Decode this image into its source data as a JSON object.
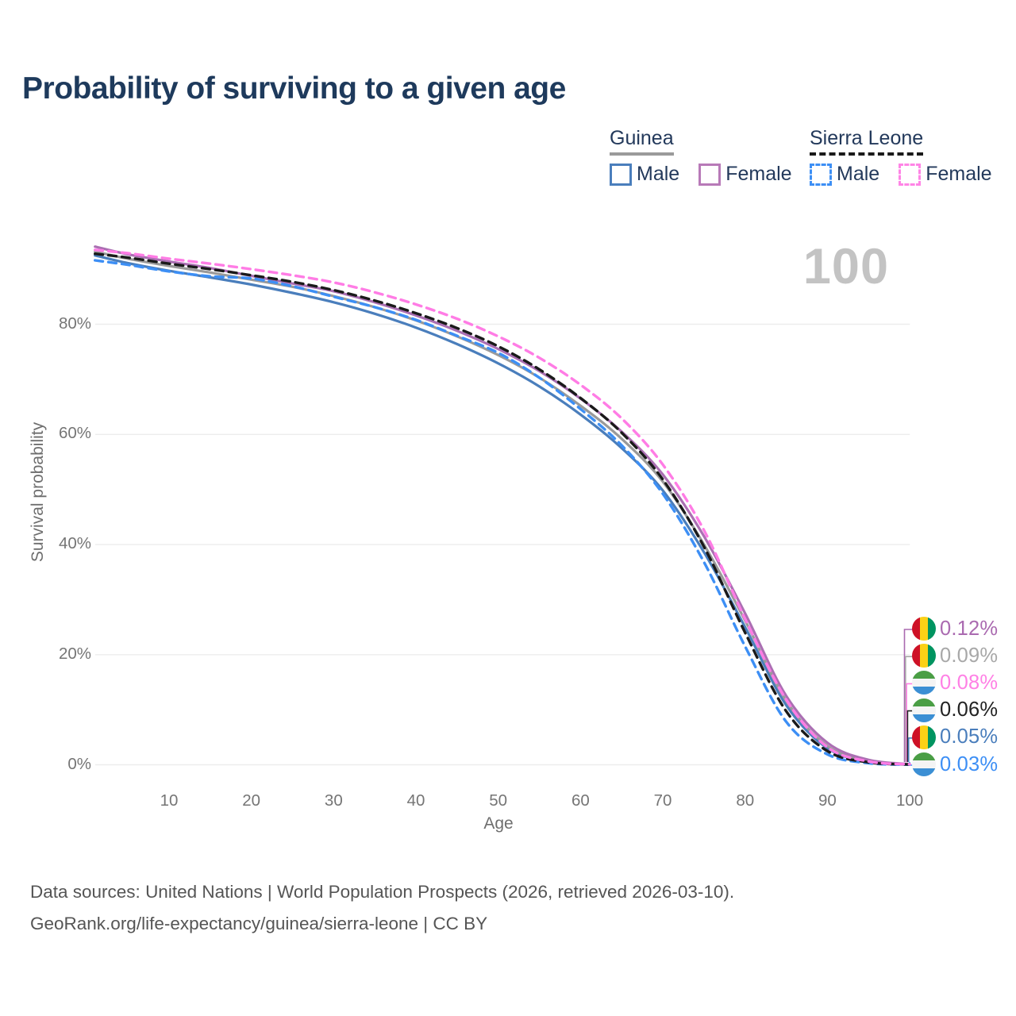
{
  "title": "Probability of surviving to a given age",
  "watermark": "100",
  "legend": {
    "groups": [
      {
        "id": "guinea",
        "title": "Guinea",
        "line_style": "solid",
        "line_color": "#9a9a9a",
        "items": [
          {
            "id": "guinea-male",
            "label": "Male",
            "color": "#4a7ebc",
            "style": "solid"
          },
          {
            "id": "guinea-female",
            "label": "Female",
            "color": "#bخت}ab8",
            "style": "solid"
          }
        ]
      }
    ]
  },
  "chart_data": {
    "type": "line",
    "title": "Probability of surviving to a given age",
    "xlabel": "Age",
    "ylabel": "Survival probability",
    "x_ticks": [
      10,
      20,
      30,
      40,
      50,
      60,
      70,
      80,
      90,
      100
    ],
    "y_ticks": [
      0,
      20,
      40,
      60,
      80
    ],
    "y_tick_suffix": "%",
    "xlim": [
      0,
      100
    ],
    "ylim": [
      0,
      100
    ],
    "grid": "horizontal",
    "x": [
      1,
      5,
      10,
      15,
      20,
      25,
      30,
      35,
      40,
      45,
      50,
      55,
      60,
      65,
      70,
      75,
      80,
      85,
      90,
      95,
      100
    ],
    "series": [
      {
        "name": "Guinea Male",
        "country": "Guinea",
        "sex": "Male",
        "color": "#4a7ebc",
        "dash": "solid",
        "values": [
          92.5,
          91.1,
          89.7,
          88.5,
          87.2,
          85.7,
          84.0,
          81.9,
          79.4,
          76.4,
          72.9,
          68.7,
          63.6,
          57.5,
          49.8,
          38.6,
          25.0,
          10.8,
          3.0,
          0.55,
          0.05
        ]
      },
      {
        "name": "Guinea Both sexes",
        "country": "Guinea",
        "sex": "Both",
        "color": "#9a9a9a",
        "dash": "solid",
        "values": [
          93.2,
          91.9,
          90.6,
          89.4,
          88.1,
          86.8,
          85.1,
          83.1,
          80.7,
          77.8,
          74.4,
          70.3,
          65.2,
          59.2,
          51.4,
          40.0,
          26.2,
          11.6,
          3.4,
          0.7,
          0.09
        ]
      },
      {
        "name": "Guinea Female",
        "country": "Guinea",
        "sex": "Female",
        "color": "#ab6fb3",
        "dash": "solid",
        "values": [
          94.1,
          92.7,
          91.4,
          90.2,
          88.8,
          87.4,
          86.0,
          84.0,
          81.6,
          78.8,
          75.5,
          71.5,
          66.5,
          60.5,
          52.7,
          41.5,
          27.5,
          12.5,
          4.0,
          0.9,
          0.12
        ]
      },
      {
        "name": "Sierra Leone Male",
        "country": "Sierra Leone",
        "sex": "Male",
        "color": "#3d8ff5",
        "dash": "dashed",
        "values": [
          91.6,
          90.8,
          89.6,
          88.7,
          88.3,
          86.9,
          85.0,
          83.1,
          80.8,
          77.9,
          74.8,
          70.3,
          64.6,
          58.0,
          49.2,
          36.8,
          21.5,
          7.8,
          1.9,
          0.3,
          0.03
        ]
      },
      {
        "name": "Sierra Leone Both sexes",
        "country": "Sierra Leone",
        "sex": "Both",
        "color": "#1a1a1a",
        "dash": "dashed",
        "values": [
          92.8,
          92.1,
          91.0,
          90.0,
          88.9,
          87.7,
          86.2,
          84.3,
          82.0,
          79.3,
          76.0,
          71.8,
          66.6,
          60.3,
          51.8,
          39.6,
          24.0,
          9.7,
          2.5,
          0.45,
          0.06
        ]
      },
      {
        "name": "Sierra Leone Female",
        "country": "Sierra Leone",
        "sex": "Female",
        "color": "#ff7ce5",
        "dash": "dashed",
        "values": [
          93.5,
          92.9,
          91.9,
          91.0,
          90.0,
          88.9,
          87.6,
          85.8,
          83.6,
          81.0,
          77.8,
          73.9,
          69.0,
          62.9,
          54.5,
          42.6,
          26.5,
          11.8,
          3.2,
          0.6,
          0.08
        ]
      }
    ]
  },
  "annotations": [
    {
      "value": "0.12%",
      "color": "#aa6ab0",
      "flag": "guinea",
      "series": "Guinea Female"
    },
    {
      "value": "0.09%",
      "color": "#a8a8a8",
      "flag": "guinea",
      "series": "Guinea Both sexes"
    },
    {
      "value": "0.08%",
      "color": "#ff80e5",
      "flag": "sierra-leone",
      "series": "Sierra Leone Female"
    },
    {
      "value": "0.06%",
      "color": "#222222",
      "flag": "sierra-leone",
      "series": "Sierra Leone Both sexes"
    },
    {
      "value": "0.05%",
      "color": "#4a7ebc",
      "flag": "guinea",
      "series": "Guinea Male"
    },
    {
      "value": "0.03%",
      "color": "#3d8ff5",
      "flag": "sierra-leone",
      "series": "Sierra Leone Male"
    }
  ],
  "flag_colors": {
    "guinea": [
      "#ce1126",
      "#fcd116",
      "#009460"
    ],
    "sierra_leone": [
      "#4a9e45",
      "#f4f4f4",
      "#3b8fd4"
    ]
  },
  "footer": {
    "line1": "Data sources: United Nations | World Population Prospects (2026, retrieved 2026-03-10).",
    "line2": "GeoRank.org/life-expectancy/guinea/sierra-leone | CC BY"
  },
  "legend_data": {
    "guinea": {
      "title": "Guinea",
      "male": "Male",
      "female": "Female",
      "male_color": "#4a7ebc",
      "female_color": "#b87ab8",
      "line_color": "#9a9a9a"
    },
    "sierra_leone": {
      "title": "Sierra Leone",
      "male": "Male",
      "female": "Female",
      "male_color": "#3d8ff5",
      "female_color": "#ff85e6",
      "line_color": "#1a1a1a"
    }
  }
}
